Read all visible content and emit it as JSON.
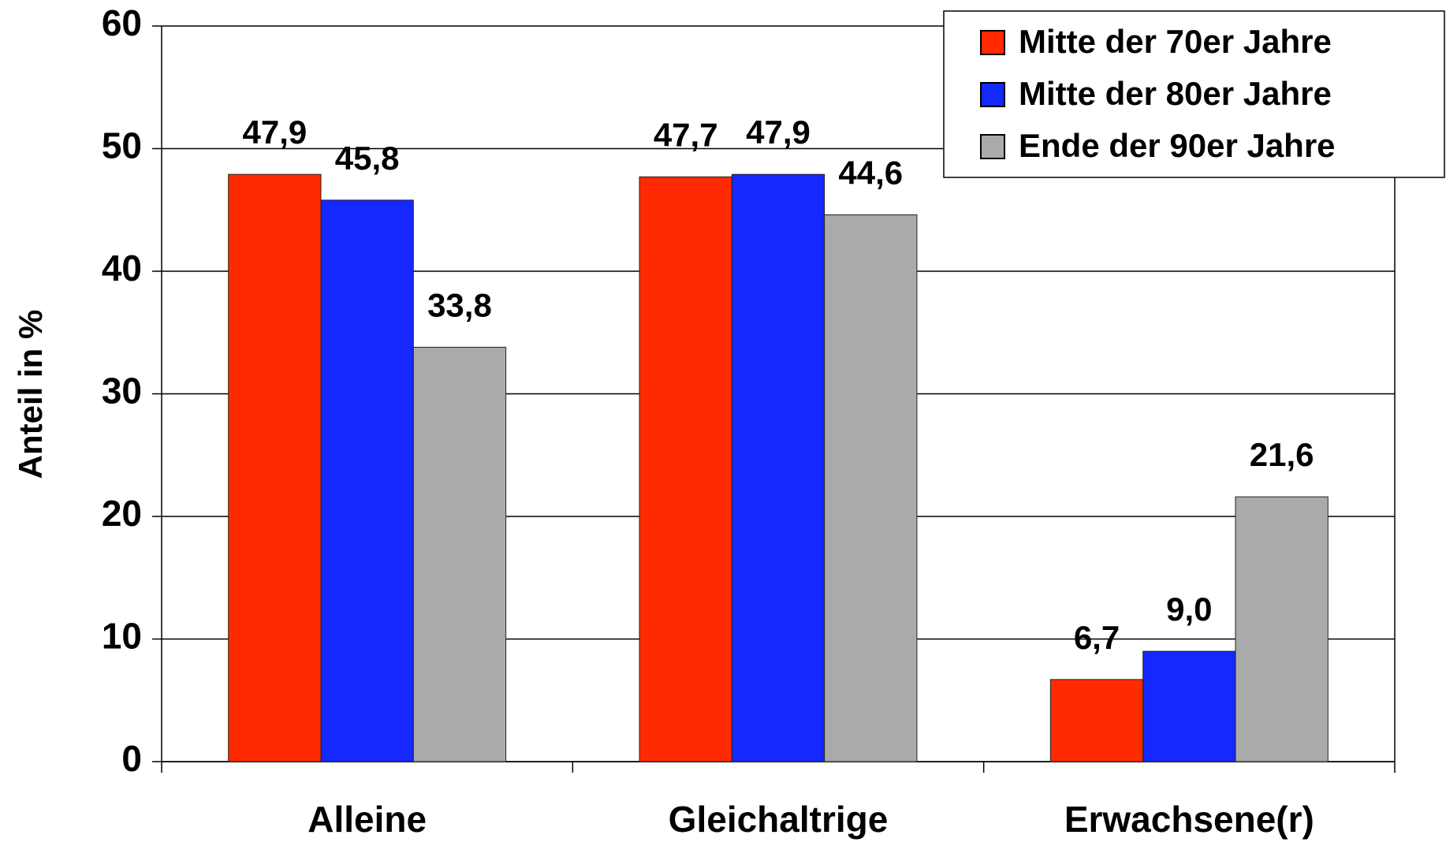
{
  "chart_data": {
    "type": "bar",
    "y_label": "Anteil in %",
    "categories": [
      "Alleine",
      "Gleichaltrige",
      "Erwachsene(r)"
    ],
    "series": [
      {
        "name": "Mitte der 70er Jahre",
        "color": "#ff2a00",
        "values": [
          47.9,
          47.7,
          6.7
        ],
        "value_labels": [
          "47,9",
          "47,7",
          "6,7"
        ]
      },
      {
        "name": "Mitte der 80er Jahre",
        "color": "#1428ff",
        "values": [
          45.8,
          47.9,
          9.0
        ],
        "value_labels": [
          "45,8",
          "47,9",
          "9,0"
        ]
      },
      {
        "name": "Ende der 90er Jahre",
        "color": "#aaaaaa",
        "values": [
          33.8,
          44.6,
          21.6
        ],
        "value_labels": [
          "33,8",
          "44,6",
          "21,6"
        ]
      }
    ],
    "ylim": [
      0,
      60
    ],
    "yticks": [
      0,
      10,
      20,
      30,
      40,
      50,
      60
    ],
    "grid": true,
    "legend": "top-right"
  }
}
